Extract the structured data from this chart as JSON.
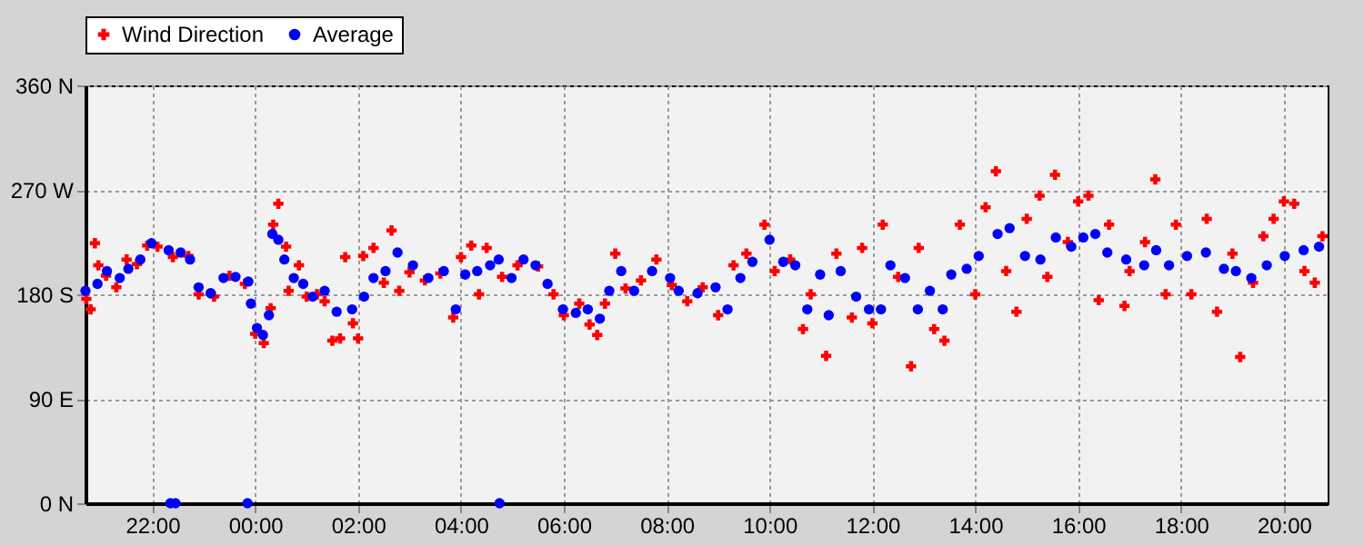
{
  "chart_data": {
    "type": "scatter",
    "xlim": [
      "2000-01-01T20:42",
      "2000-01-02T20:51"
    ],
    "xticks": [
      {
        "value": "2000-01-01T22:00",
        "label": "22:00"
      },
      {
        "value": "2000-01-02T00:00",
        "label": "00:00"
      },
      {
        "value": "2000-01-02T02:00",
        "label": "02:00"
      },
      {
        "value": "2000-01-02T04:00",
        "label": "04:00"
      },
      {
        "value": "2000-01-02T06:00",
        "label": "06:00"
      },
      {
        "value": "2000-01-02T08:00",
        "label": "08:00"
      },
      {
        "value": "2000-01-02T10:00",
        "label": "10:00"
      },
      {
        "value": "2000-01-02T12:00",
        "label": "12:00"
      },
      {
        "value": "2000-01-02T14:00",
        "label": "14:00"
      },
      {
        "value": "2000-01-02T16:00",
        "label": "16:00"
      },
      {
        "value": "2000-01-02T18:00",
        "label": "18:00"
      },
      {
        "value": "2000-01-02T20:00",
        "label": "20:00"
      }
    ],
    "ylim": [
      0,
      360
    ],
    "yticks": [
      {
        "value": 0,
        "label": "0 N"
      },
      {
        "value": 90,
        "label": "90 E"
      },
      {
        "value": 180,
        "label": "180 S"
      },
      {
        "value": 270,
        "label": "270 W"
      },
      {
        "value": 360,
        "label": "360 N"
      }
    ],
    "grid": true,
    "legend": "top",
    "series": [
      {
        "name": "Wind Direction",
        "color": "#ff0000",
        "marker": "cross",
        "x": [
          "2000-01-01T20:43",
          "2000-01-01T20:48",
          "2000-01-01T20:53",
          "2000-01-01T20:57",
          "2000-01-01T21:06",
          "2000-01-01T21:18",
          "2000-01-01T21:30",
          "2000-01-01T21:42",
          "2000-01-01T21:54",
          "2000-01-01T22:06",
          "2000-01-01T22:24",
          "2000-01-01T22:42",
          "2000-01-01T22:54",
          "2000-01-01T23:12",
          "2000-01-01T23:30",
          "2000-01-01T23:48",
          "2000-01-02T00:00",
          "2000-01-02T00:10",
          "2000-01-02T00:18",
          "2000-01-02T00:21",
          "2000-01-02T00:27",
          "2000-01-02T00:36",
          "2000-01-02T00:39",
          "2000-01-02T00:51",
          "2000-01-02T01:00",
          "2000-01-02T01:12",
          "2000-01-02T01:21",
          "2000-01-02T01:30",
          "2000-01-02T01:39",
          "2000-01-02T01:45",
          "2000-01-02T01:54",
          "2000-01-02T02:00",
          "2000-01-02T02:06",
          "2000-01-02T02:18",
          "2000-01-02T02:30",
          "2000-01-02T02:39",
          "2000-01-02T02:48",
          "2000-01-02T03:00",
          "2000-01-02T03:18",
          "2000-01-02T03:36",
          "2000-01-02T03:51",
          "2000-01-02T04:00",
          "2000-01-02T04:12",
          "2000-01-02T04:21",
          "2000-01-02T04:30",
          "2000-01-02T04:48",
          "2000-01-02T05:06",
          "2000-01-02T05:30",
          "2000-01-02T05:48",
          "2000-01-02T06:00",
          "2000-01-02T06:18",
          "2000-01-02T06:30",
          "2000-01-02T06:39",
          "2000-01-02T06:48",
          "2000-01-02T07:00",
          "2000-01-02T07:12",
          "2000-01-02T07:30",
          "2000-01-02T07:48",
          "2000-01-02T08:06",
          "2000-01-02T08:24",
          "2000-01-02T08:42",
          "2000-01-02T09:00",
          "2000-01-02T09:18",
          "2000-01-02T09:33",
          "2000-01-02T09:54",
          "2000-01-02T10:06",
          "2000-01-02T10:24",
          "2000-01-02T10:39",
          "2000-01-02T10:48",
          "2000-01-02T11:06",
          "2000-01-02T11:18",
          "2000-01-02T11:36",
          "2000-01-02T11:48",
          "2000-01-02T12:00",
          "2000-01-02T12:12",
          "2000-01-02T12:30",
          "2000-01-02T12:45",
          "2000-01-02T12:54",
          "2000-01-02T13:12",
          "2000-01-02T13:24",
          "2000-01-02T13:42",
          "2000-01-02T14:00",
          "2000-01-02T14:12",
          "2000-01-02T14:24",
          "2000-01-02T14:36",
          "2000-01-02T14:48",
          "2000-01-02T15:00",
          "2000-01-02T15:15",
          "2000-01-02T15:24",
          "2000-01-02T15:33",
          "2000-01-02T15:48",
          "2000-01-02T16:00",
          "2000-01-02T16:12",
          "2000-01-02T16:24",
          "2000-01-02T16:36",
          "2000-01-02T16:54",
          "2000-01-02T17:00",
          "2000-01-02T17:18",
          "2000-01-02T17:30",
          "2000-01-02T17:42",
          "2000-01-02T17:54",
          "2000-01-02T18:12",
          "2000-01-02T18:30",
          "2000-01-02T18:42",
          "2000-01-02T19:00",
          "2000-01-02T19:09",
          "2000-01-02T19:24",
          "2000-01-02T19:36",
          "2000-01-02T19:48",
          "2000-01-02T20:00",
          "2000-01-02T20:12",
          "2000-01-02T20:24",
          "2000-01-02T20:36",
          "2000-01-02T20:45"
        ],
        "values": [
          176,
          167,
          224,
          205,
          196,
          186,
          210,
          206,
          222,
          221,
          212,
          213,
          180,
          178,
          196,
          189,
          146,
          138,
          168,
          240,
          258,
          221,
          183,
          205,
          178,
          180,
          174,
          140,
          142,
          212,
          155,
          142,
          213,
          220,
          190,
          235,
          183,
          199,
          192,
          198,
          160,
          212,
          222,
          180,
          220,
          195,
          205,
          204,
          180,
          162,
          172,
          154,
          145,
          172,
          215,
          185,
          192,
          210,
          188,
          174,
          186,
          162,
          205,
          215,
          240,
          200,
          210,
          150,
          180,
          127,
          215,
          160,
          220,
          155,
          240,
          195,
          118,
          220,
          150,
          140,
          240,
          180,
          255,
          286,
          200,
          165,
          245,
          265,
          195,
          283,
          225,
          260,
          265,
          175,
          240,
          170,
          200,
          225,
          279,
          180,
          240,
          180,
          245,
          165,
          215,
          126,
          190,
          230,
          245,
          260,
          258,
          200,
          190,
          230
        ]
      },
      {
        "name": "Average",
        "color": "#0000ff",
        "marker": "circle",
        "x": [
          "2000-01-01T20:42",
          "2000-01-01T20:56",
          "2000-01-01T21:07",
          "2000-01-01T21:22",
          "2000-01-01T21:32",
          "2000-01-01T21:46",
          "2000-01-01T21:59",
          "2000-01-01T22:19",
          "2000-01-01T22:21",
          "2000-01-01T22:27",
          "2000-01-01T22:33",
          "2000-01-01T22:44",
          "2000-01-01T22:54",
          "2000-01-01T23:08",
          "2000-01-01T23:23",
          "2000-01-01T23:37",
          "2000-01-01T23:51",
          "2000-01-01T23:52",
          "2000-01-01T23:55",
          "2000-01-02T00:02",
          "2000-01-02T00:09",
          "2000-01-02T00:16",
          "2000-01-02T00:20",
          "2000-01-02T00:27",
          "2000-01-02T00:34",
          "2000-01-02T00:45",
          "2000-01-02T00:56",
          "2000-01-02T01:07",
          "2000-01-02T01:21",
          "2000-01-02T01:35",
          "2000-01-02T01:53",
          "2000-01-02T02:07",
          "2000-01-02T02:18",
          "2000-01-02T02:32",
          "2000-01-02T02:46",
          "2000-01-02T03:04",
          "2000-01-02T03:22",
          "2000-01-02T03:40",
          "2000-01-02T03:54",
          "2000-01-02T04:05",
          "2000-01-02T04:19",
          "2000-01-02T04:34",
          "2000-01-02T04:44",
          "2000-01-02T04:45",
          "2000-01-02T04:59",
          "2000-01-02T05:13",
          "2000-01-02T05:27",
          "2000-01-02T05:41",
          "2000-01-02T05:59",
          "2000-01-02T06:14",
          "2000-01-02T06:28",
          "2000-01-02T06:42",
          "2000-01-02T06:53",
          "2000-01-02T07:07",
          "2000-01-02T07:22",
          "2000-01-02T07:43",
          "2000-01-02T08:04",
          "2000-01-02T08:14",
          "2000-01-02T08:36",
          "2000-01-02T08:57",
          "2000-01-02T09:11",
          "2000-01-02T09:26",
          "2000-01-02T09:40",
          "2000-01-02T10:00",
          "2000-01-02T10:16",
          "2000-01-02T10:30",
          "2000-01-02T10:44",
          "2000-01-02T10:59",
          "2000-01-02T11:09",
          "2000-01-02T11:23",
          "2000-01-02T11:41",
          "2000-01-02T11:56",
          "2000-01-02T12:10",
          "2000-01-02T12:21",
          "2000-01-02T12:38",
          "2000-01-02T12:53",
          "2000-01-02T13:07",
          "2000-01-02T13:22",
          "2000-01-02T13:32",
          "2000-01-02T13:50",
          "2000-01-02T14:04",
          "2000-01-02T14:26",
          "2000-01-02T14:40",
          "2000-01-02T14:58",
          "2000-01-02T15:16",
          "2000-01-02T15:34",
          "2000-01-02T15:52",
          "2000-01-02T16:06",
          "2000-01-02T16:20",
          "2000-01-02T16:34",
          "2000-01-02T16:56",
          "2000-01-02T17:17",
          "2000-01-02T17:31",
          "2000-01-02T17:46",
          "2000-01-02T18:07",
          "2000-01-02T18:29",
          "2000-01-02T18:50",
          "2000-01-02T19:04",
          "2000-01-02T19:22",
          "2000-01-02T19:40",
          "2000-01-02T20:01",
          "2000-01-02T20:23",
          "2000-01-02T20:41"
        ],
        "values": [
          183,
          189,
          200,
          194,
          202,
          210,
          224,
          218,
          0,
          0,
          216,
          210,
          186,
          181,
          194,
          195,
          0,
          191,
          172,
          151,
          145,
          162,
          232,
          227,
          210,
          194,
          189,
          178,
          183,
          165,
          167,
          178,
          194,
          200,
          216,
          205,
          194,
          200,
          167,
          197,
          200,
          205,
          210,
          0,
          194,
          210,
          205,
          189,
          167,
          164,
          167,
          159,
          183,
          200,
          183,
          200,
          194,
          183,
          181,
          186,
          167,
          194,
          208,
          227,
          208,
          205,
          167,
          197,
          162,
          200,
          178,
          167,
          167,
          205,
          194,
          167,
          183,
          167,
          197,
          202,
          213,
          232,
          237,
          213,
          210,
          229,
          221,
          229,
          232,
          216,
          210,
          205,
          218,
          205,
          213,
          216,
          202,
          200,
          194,
          205,
          213,
          218,
          221
        ]
      }
    ]
  }
}
